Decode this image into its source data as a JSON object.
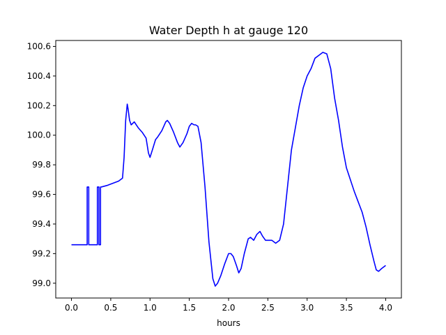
{
  "chart_data": {
    "type": "line",
    "title": "Water Depth h at gauge 120",
    "xlabel": "hours",
    "ylabel": "",
    "xlim": [
      -0.2,
      4.2
    ],
    "ylim": [
      98.9,
      100.64
    ],
    "grid": false,
    "legend": "none",
    "x_ticks": [
      0.0,
      0.5,
      1.0,
      1.5,
      2.0,
      2.5,
      3.0,
      3.5,
      4.0
    ],
    "x_tick_labels": [
      "0.0",
      "0.5",
      "1.0",
      "1.5",
      "2.0",
      "2.5",
      "3.0",
      "3.5",
      "4.0"
    ],
    "y_ticks": [
      99.0,
      99.2,
      99.4,
      99.6,
      99.8,
      100.0,
      100.2,
      100.4,
      100.6
    ],
    "y_tick_labels": [
      "99.0",
      "99.2",
      "99.4",
      "99.6",
      "99.8",
      "100.0",
      "100.2",
      "100.4",
      "100.6"
    ],
    "series": [
      {
        "color": "#0000ff",
        "x": [
          0.0,
          0.2,
          0.2,
          0.22,
          0.22,
          0.33,
          0.33,
          0.35,
          0.35,
          0.37,
          0.37,
          0.38,
          0.38,
          0.45,
          0.5,
          0.55,
          0.6,
          0.65,
          0.67,
          0.69,
          0.71,
          0.72,
          0.74,
          0.76,
          0.8,
          0.85,
          0.9,
          0.95,
          0.98,
          1.0,
          1.03,
          1.07,
          1.1,
          1.15,
          1.2,
          1.22,
          1.25,
          1.3,
          1.35,
          1.38,
          1.42,
          1.47,
          1.5,
          1.53,
          1.56,
          1.58,
          1.61,
          1.65,
          1.7,
          1.75,
          1.8,
          1.83,
          1.86,
          1.9,
          1.95,
          2.0,
          2.03,
          2.06,
          2.1,
          2.13,
          2.16,
          2.2,
          2.25,
          2.28,
          2.32,
          2.36,
          2.4,
          2.43,
          2.47,
          2.5,
          2.55,
          2.6,
          2.65,
          2.7,
          2.75,
          2.8,
          2.85,
          2.9,
          2.95,
          3.0,
          3.05,
          3.1,
          3.15,
          3.2,
          3.25,
          3.3,
          3.35,
          3.4,
          3.45,
          3.5,
          3.55,
          3.6,
          3.65,
          3.7,
          3.75,
          3.8,
          3.85,
          3.88,
          3.91,
          3.95,
          4.0
        ],
        "y": [
          99.26,
          99.26,
          99.65,
          99.65,
          99.26,
          99.26,
          99.65,
          99.65,
          99.26,
          99.26,
          99.65,
          99.65,
          99.65,
          99.66,
          99.67,
          99.68,
          99.69,
          99.71,
          99.85,
          100.1,
          100.21,
          100.18,
          100.1,
          100.07,
          100.09,
          100.05,
          100.02,
          99.98,
          99.88,
          99.85,
          99.9,
          99.97,
          99.99,
          100.03,
          100.09,
          100.1,
          100.08,
          100.02,
          99.95,
          99.92,
          99.95,
          100.01,
          100.06,
          100.08,
          100.07,
          100.07,
          100.06,
          99.95,
          99.65,
          99.28,
          99.03,
          98.98,
          99.0,
          99.05,
          99.13,
          99.2,
          99.2,
          99.18,
          99.12,
          99.07,
          99.1,
          99.2,
          99.3,
          99.31,
          99.29,
          99.33,
          99.35,
          99.32,
          99.29,
          99.29,
          99.29,
          99.27,
          99.29,
          99.4,
          99.65,
          99.9,
          100.05,
          100.2,
          100.32,
          100.4,
          100.45,
          100.52,
          100.54,
          100.56,
          100.55,
          100.45,
          100.25,
          100.1,
          99.92,
          99.78,
          99.7,
          99.62,
          99.55,
          99.48,
          99.38,
          99.26,
          99.15,
          99.09,
          99.08,
          99.1,
          99.12
        ]
      }
    ]
  }
}
